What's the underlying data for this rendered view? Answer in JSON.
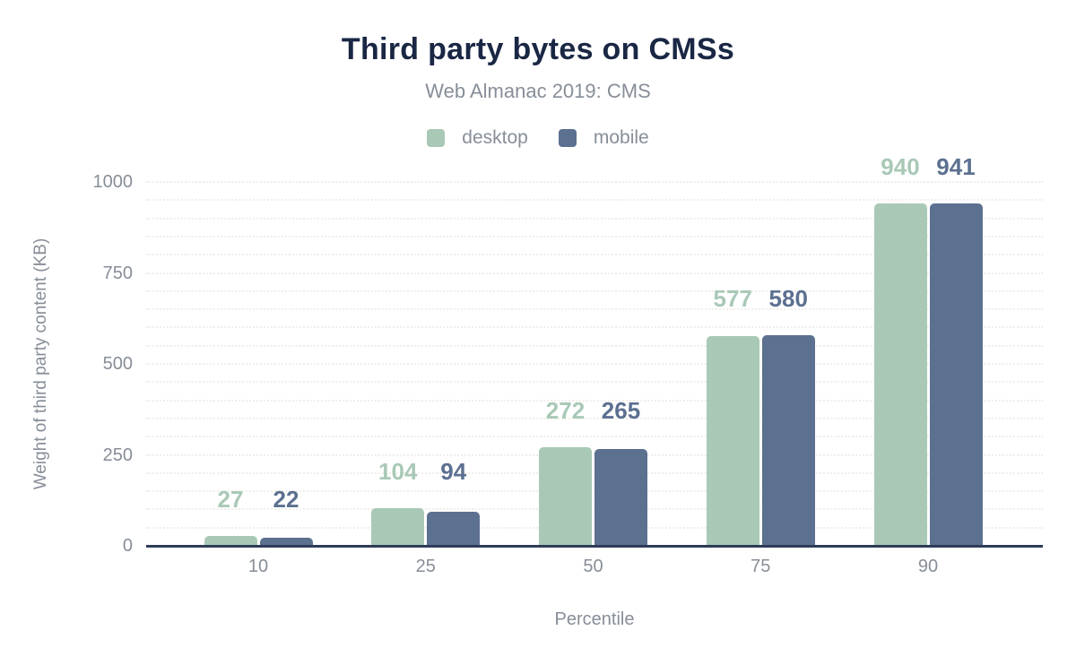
{
  "header": {
    "title": "Third party bytes on CMSs",
    "subtitle": "Web Almanac 2019: CMS"
  },
  "legend": {
    "items": [
      {
        "label": "desktop",
        "color": "#a9c9b6"
      },
      {
        "label": "mobile",
        "color": "#5c7090"
      }
    ]
  },
  "colors": {
    "title": "#1a2744",
    "muted_text": "#878e98",
    "axis_line": "#2e3c58",
    "gridline": "#f0eeeb",
    "desktop": "#a9c9b6",
    "mobile": "#5c7090",
    "background": "#ffffff"
  },
  "chart_data": {
    "type": "bar",
    "title": "Third party bytes on CMSs",
    "subtitle": "Web Almanac 2019: CMS",
    "categories": [
      "10",
      "25",
      "50",
      "75",
      "90"
    ],
    "series": [
      {
        "name": "desktop",
        "color": "#a9c9b6",
        "values": [
          27,
          104,
          272,
          577,
          940
        ]
      },
      {
        "name": "mobile",
        "color": "#5c7090",
        "values": [
          22,
          94,
          265,
          580,
          941
        ]
      }
    ],
    "xlabel": "Percentile",
    "ylabel": "Weight of third party content (KB)",
    "ylim": [
      0,
      1000
    ],
    "yticks": [
      0,
      250,
      500,
      750,
      1000
    ],
    "grid": {
      "horizontal": true,
      "minor_interval": 50,
      "style": "dotted"
    },
    "legend_position": "top",
    "value_labels": true
  }
}
